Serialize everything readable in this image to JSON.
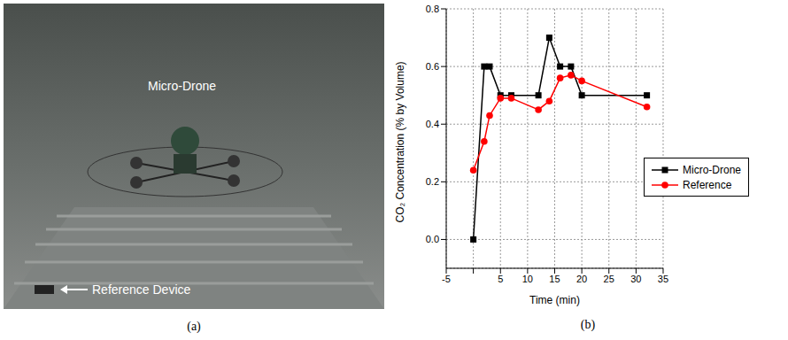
{
  "photo_panel": {
    "caption": "(a)",
    "labels": [
      "Micro-Drone",
      "Reference Device"
    ]
  },
  "chart_data": {
    "type": "line",
    "caption": "(b)",
    "x_label": "Time (min)",
    "y_label": "CO₂ Concentration (% by Volume)",
    "x": [
      0,
      2,
      3,
      5,
      7,
      12,
      14,
      16,
      18,
      20,
      32
    ],
    "series": [
      {
        "name": "Micro-Drone",
        "color": "#000000",
        "marker": "square",
        "values": [
          0,
          0.6,
          0.6,
          0.5,
          0.5,
          0.5,
          0.7,
          0.6,
          0.6,
          0.5,
          0.5
        ]
      },
      {
        "name": "Reference",
        "color": "#ff0000",
        "marker": "circle",
        "values": [
          0.24,
          0.34,
          0.43,
          0.49,
          0.49,
          0.45,
          0.48,
          0.56,
          0.57,
          0.55,
          0.46
        ]
      }
    ],
    "xlim": [
      -5,
      35
    ],
    "xticks": [
      -5,
      0,
      5,
      10,
      15,
      20,
      25,
      30,
      35
    ],
    "ylim": [
      -0.1,
      0.8
    ],
    "yticks": [
      {
        "value": 0,
        "label": "0.0"
      },
      0.2,
      0.4,
      0.6,
      0.8
    ],
    "grid": true,
    "legend": "right"
  }
}
